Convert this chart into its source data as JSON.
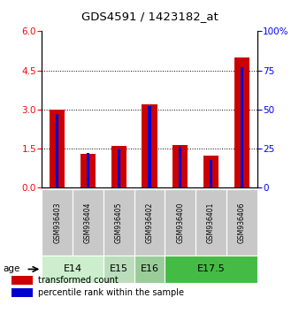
{
  "title": "GDS4591 / 1423182_at",
  "samples": [
    "GSM936403",
    "GSM936404",
    "GSM936405",
    "GSM936402",
    "GSM936400",
    "GSM936401",
    "GSM936406"
  ],
  "transformed_counts": [
    3.0,
    1.3,
    1.6,
    3.2,
    1.65,
    1.25,
    5.0
  ],
  "percentile_ranks": [
    47,
    22,
    25,
    52,
    26,
    18,
    77
  ],
  "ages": [
    {
      "label": "E14",
      "samples": [
        "GSM936403",
        "GSM936404"
      ],
      "color": "#cceecc"
    },
    {
      "label": "E15",
      "samples": [
        "GSM936405"
      ],
      "color": "#bbddbb"
    },
    {
      "label": "E16",
      "samples": [
        "GSM936402"
      ],
      "color": "#99cc99"
    },
    {
      "label": "E17.5",
      "samples": [
        "GSM936400",
        "GSM936401",
        "GSM936406"
      ],
      "color": "#44bb44"
    }
  ],
  "ylim_left": [
    0,
    6
  ],
  "ylim_right": [
    0,
    100
  ],
  "yticks_left": [
    0,
    1.5,
    3.0,
    4.5,
    6
  ],
  "yticks_right": [
    0,
    25,
    50,
    75,
    100
  ],
  "bar_color_red": "#cc0000",
  "bar_color_blue": "#0000cc",
  "sample_bg_color": "#c8c8c8",
  "legend_red_label": "transformed count",
  "legend_blue_label": "percentile rank within the sample",
  "bar_width": 0.5,
  "figsize": [
    3.38,
    3.54
  ],
  "dpi": 100
}
